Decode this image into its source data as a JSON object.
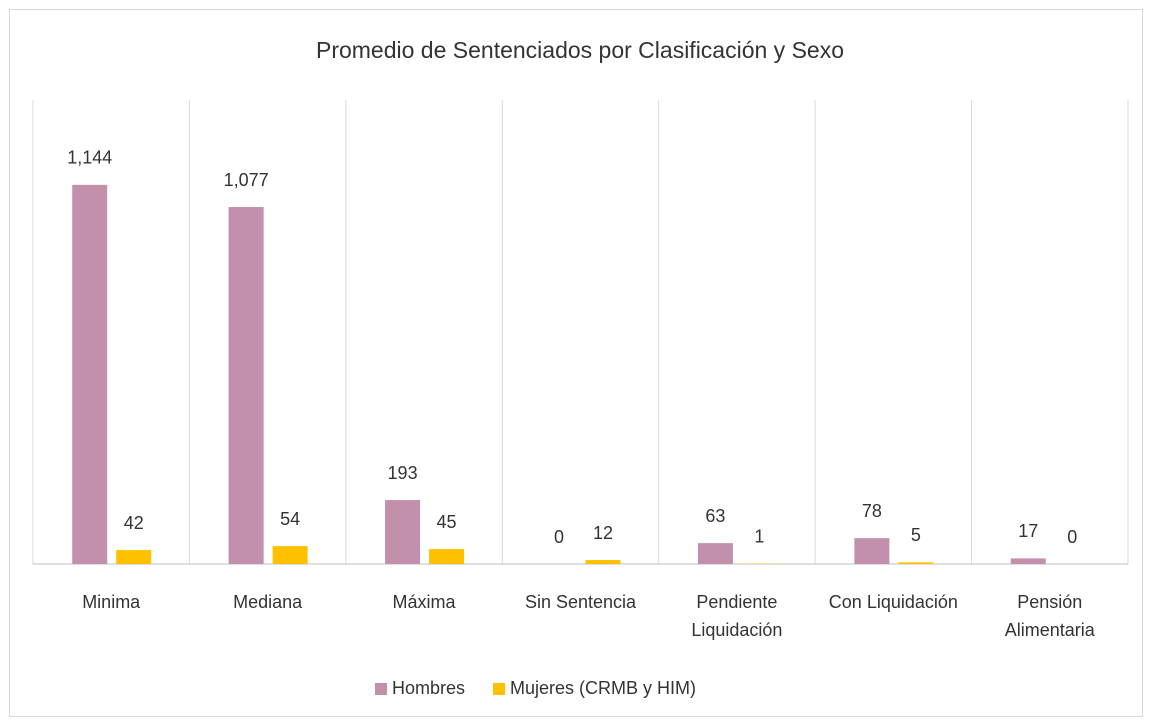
{
  "chart_data": {
    "type": "bar",
    "title": "Promedio de Sentenciados por Clasificación y Sexo",
    "categories": [
      "Minima",
      "Mediana",
      "Máxima",
      "Sin Sentencia",
      "Pendiente Liquidación",
      "Con Liquidación",
      "Pensión Alimentaria"
    ],
    "series": [
      {
        "name": "Hombres",
        "color": "#c390ac",
        "values": [
          1144,
          1077,
          193,
          0,
          63,
          78,
          17
        ],
        "value_labels": [
          "1,144",
          "1,077",
          "193",
          "0",
          "63",
          "78",
          "17"
        ]
      },
      {
        "name": "Mujeres (CRMB y HIM)",
        "color": "#ffc000",
        "values": [
          42,
          54,
          45,
          12,
          1,
          5,
          0
        ]
      }
    ],
    "ylim": [
      0,
      1400
    ],
    "legend": "bottom"
  }
}
